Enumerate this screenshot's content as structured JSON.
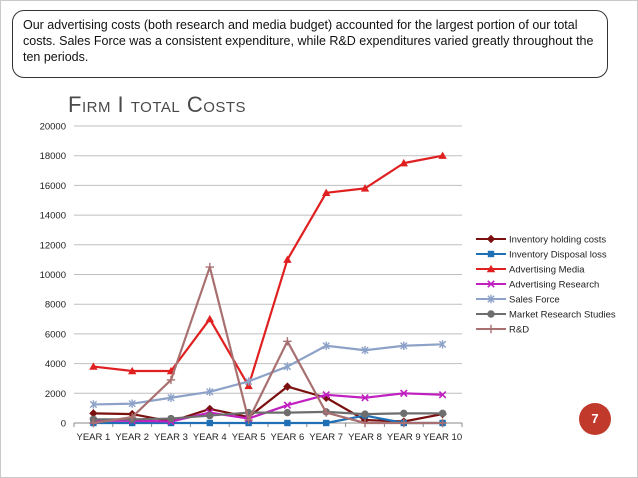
{
  "callout_text": "Our advertising costs (both research and media budget) accounted for the largest portion of our total costs.  Sales Force was a consistent expenditure, while R&D expenditures varied greatly throughout the ten periods.",
  "page_number": "7",
  "chart_data": {
    "type": "line",
    "title": "Firm I total Costs",
    "xlabel": "",
    "ylabel": "",
    "categories": [
      "YEAR 1",
      "YEAR 2",
      "YEAR 3",
      "YEAR 4",
      "YEAR 5",
      "YEAR 6",
      "YEAR 7",
      "YEAR 8",
      "YEAR 9",
      "YEAR 10"
    ],
    "ylim": [
      0,
      20000
    ],
    "yticks": [
      "0",
      "2000",
      "4000",
      "6000",
      "8000",
      "10000",
      "12000",
      "14000",
      "16000",
      "18000",
      "20000"
    ],
    "grid": true,
    "legend_position": "right",
    "series": [
      {
        "name": "Inventory holding costs",
        "color": "#7b1010",
        "marker": "diamond",
        "values": [
          650,
          600,
          100,
          950,
          400,
          2450,
          1700,
          200,
          100,
          600
        ]
      },
      {
        "name": "Inventory Disposal loss",
        "color": "#1f6fb5",
        "marker": "square",
        "values": [
          0,
          0,
          0,
          0,
          0,
          0,
          0,
          500,
          0,
          0
        ]
      },
      {
        "name": "Advertising Media",
        "color": "#e02020",
        "marker": "triangle",
        "values": [
          3800,
          3500,
          3500,
          7000,
          2500,
          11000,
          15500,
          15800,
          17500,
          18000
        ]
      },
      {
        "name": "Advertising Research",
        "color": "#c020c0",
        "marker": "x",
        "values": [
          150,
          150,
          100,
          700,
          300,
          1200,
          1900,
          1700,
          2000,
          1900
        ]
      },
      {
        "name": "Sales Force",
        "color": "#8da2c8",
        "marker": "star",
        "values": [
          1250,
          1300,
          1700,
          2100,
          2800,
          3800,
          5200,
          4900,
          5200,
          5300
        ]
      },
      {
        "name": "Market Research Studies",
        "color": "#6e6e6e",
        "marker": "circle",
        "values": [
          250,
          250,
          300,
          500,
          700,
          700,
          750,
          600,
          650,
          650
        ]
      },
      {
        "name": "R&D",
        "color": "#a87070",
        "marker": "plus",
        "values": [
          0,
          400,
          2900,
          10500,
          200,
          5500,
          700,
          0,
          0,
          0
        ]
      }
    ]
  }
}
